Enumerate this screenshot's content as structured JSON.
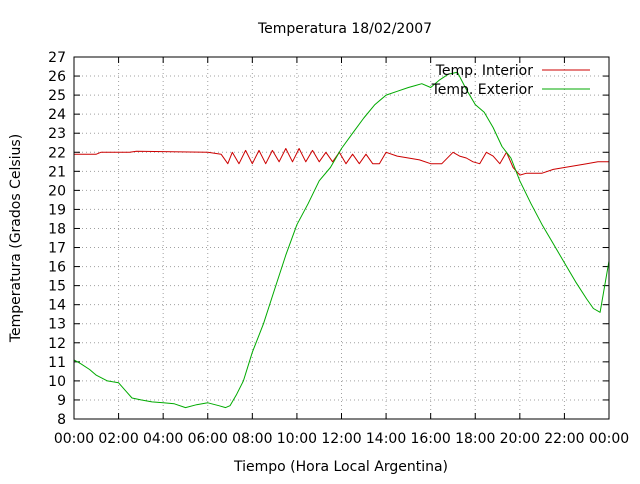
{
  "chart_data": {
    "type": "line",
    "title": "Temperatura 18/02/2007",
    "xlabel": "Tiempo (Hora Local Argentina)",
    "ylabel": "Temperatura (Grados Celsius)",
    "xlim": [
      0,
      24
    ],
    "ylim": [
      8,
      27
    ],
    "grid": true,
    "legend_position": "top-right",
    "x_ticks": [
      {
        "value": 0,
        "label": "00:00"
      },
      {
        "value": 2,
        "label": "02:00"
      },
      {
        "value": 4,
        "label": "04:00"
      },
      {
        "value": 6,
        "label": "06:00"
      },
      {
        "value": 8,
        "label": "08:00"
      },
      {
        "value": 10,
        "label": "10:00"
      },
      {
        "value": 12,
        "label": "12:00"
      },
      {
        "value": 14,
        "label": "14:00"
      },
      {
        "value": 16,
        "label": "16:00"
      },
      {
        "value": 18,
        "label": "18:00"
      },
      {
        "value": 20,
        "label": "20:00"
      },
      {
        "value": 22,
        "label": "22:00"
      },
      {
        "value": 24,
        "label": "00:00"
      }
    ],
    "y_ticks": [
      8,
      9,
      10,
      11,
      12,
      13,
      14,
      15,
      16,
      17,
      18,
      19,
      20,
      21,
      22,
      23,
      24,
      25,
      26,
      27
    ],
    "series": [
      {
        "name": "Temp. Interior",
        "color": "#cc0000",
        "x": [
          0,
          1,
          1.2,
          2.5,
          2.8,
          6,
          6.6,
          6.9,
          7.1,
          7.4,
          7.7,
          8,
          8.3,
          8.6,
          8.9,
          9.2,
          9.5,
          9.8,
          10.1,
          10.4,
          10.7,
          11,
          11.3,
          11.6,
          11.9,
          12.2,
          12.5,
          12.8,
          13.1,
          13.4,
          13.7,
          14,
          14.5,
          15,
          15.5,
          16,
          16.5,
          17,
          17.3,
          17.6,
          17.9,
          18.2,
          18.5,
          18.8,
          19.1,
          19.4,
          19.7,
          20.0,
          20.3,
          20.6,
          21,
          21.5,
          22,
          22.5,
          23,
          23.5,
          24
        ],
        "y": [
          21.9,
          21.9,
          22.0,
          22.0,
          22.05,
          22.0,
          21.9,
          21.4,
          22.0,
          21.4,
          22.1,
          21.4,
          22.1,
          21.4,
          22.1,
          21.5,
          22.2,
          21.5,
          22.2,
          21.5,
          22.1,
          21.5,
          22.0,
          21.5,
          22.0,
          21.4,
          21.9,
          21.4,
          21.9,
          21.4,
          21.4,
          22.0,
          21.8,
          21.7,
          21.6,
          21.4,
          21.4,
          22.0,
          21.8,
          21.7,
          21.5,
          21.4,
          22.0,
          21.8,
          21.4,
          22.0,
          21.2,
          20.8,
          20.9,
          20.9,
          20.9,
          21.1,
          21.2,
          21.3,
          21.4,
          21.5,
          21.5
        ]
      },
      {
        "name": "Temp. Exterior",
        "color": "#00aa00",
        "x": [
          0,
          0.3,
          0.7,
          1,
          1.5,
          2,
          2.3,
          2.6,
          3,
          3.5,
          4,
          4.5,
          5,
          5.5,
          6,
          6.5,
          6.8,
          7,
          7.3,
          7.6,
          8,
          8.5,
          9,
          9.5,
          10,
          10.5,
          11,
          11.5,
          12,
          12.5,
          13,
          13.5,
          14,
          14.5,
          15,
          15.3,
          15.6,
          16,
          16.4,
          16.8,
          17.2,
          17.6,
          18,
          18.4,
          18.8,
          19.2,
          19.6,
          20,
          20.5,
          21,
          21.5,
          22,
          22.5,
          23,
          23.3,
          23.6,
          24
        ],
        "y": [
          11.1,
          10.9,
          10.6,
          10.3,
          10.0,
          9.9,
          9.5,
          9.1,
          9.0,
          8.9,
          8.85,
          8.8,
          8.6,
          8.75,
          8.85,
          8.7,
          8.6,
          8.7,
          9.3,
          10.0,
          11.5,
          13.0,
          14.8,
          16.6,
          18.2,
          19.3,
          20.5,
          21.2,
          22.2,
          23.0,
          23.8,
          24.5,
          25.0,
          25.2,
          25.4,
          25.5,
          25.6,
          25.4,
          25.8,
          26.1,
          26.2,
          25.3,
          24.5,
          24.1,
          23.3,
          22.3,
          21.7,
          20.5,
          19.3,
          18.2,
          17.2,
          16.2,
          15.2,
          14.3,
          13.8,
          13.6,
          16.3
        ]
      }
    ]
  }
}
